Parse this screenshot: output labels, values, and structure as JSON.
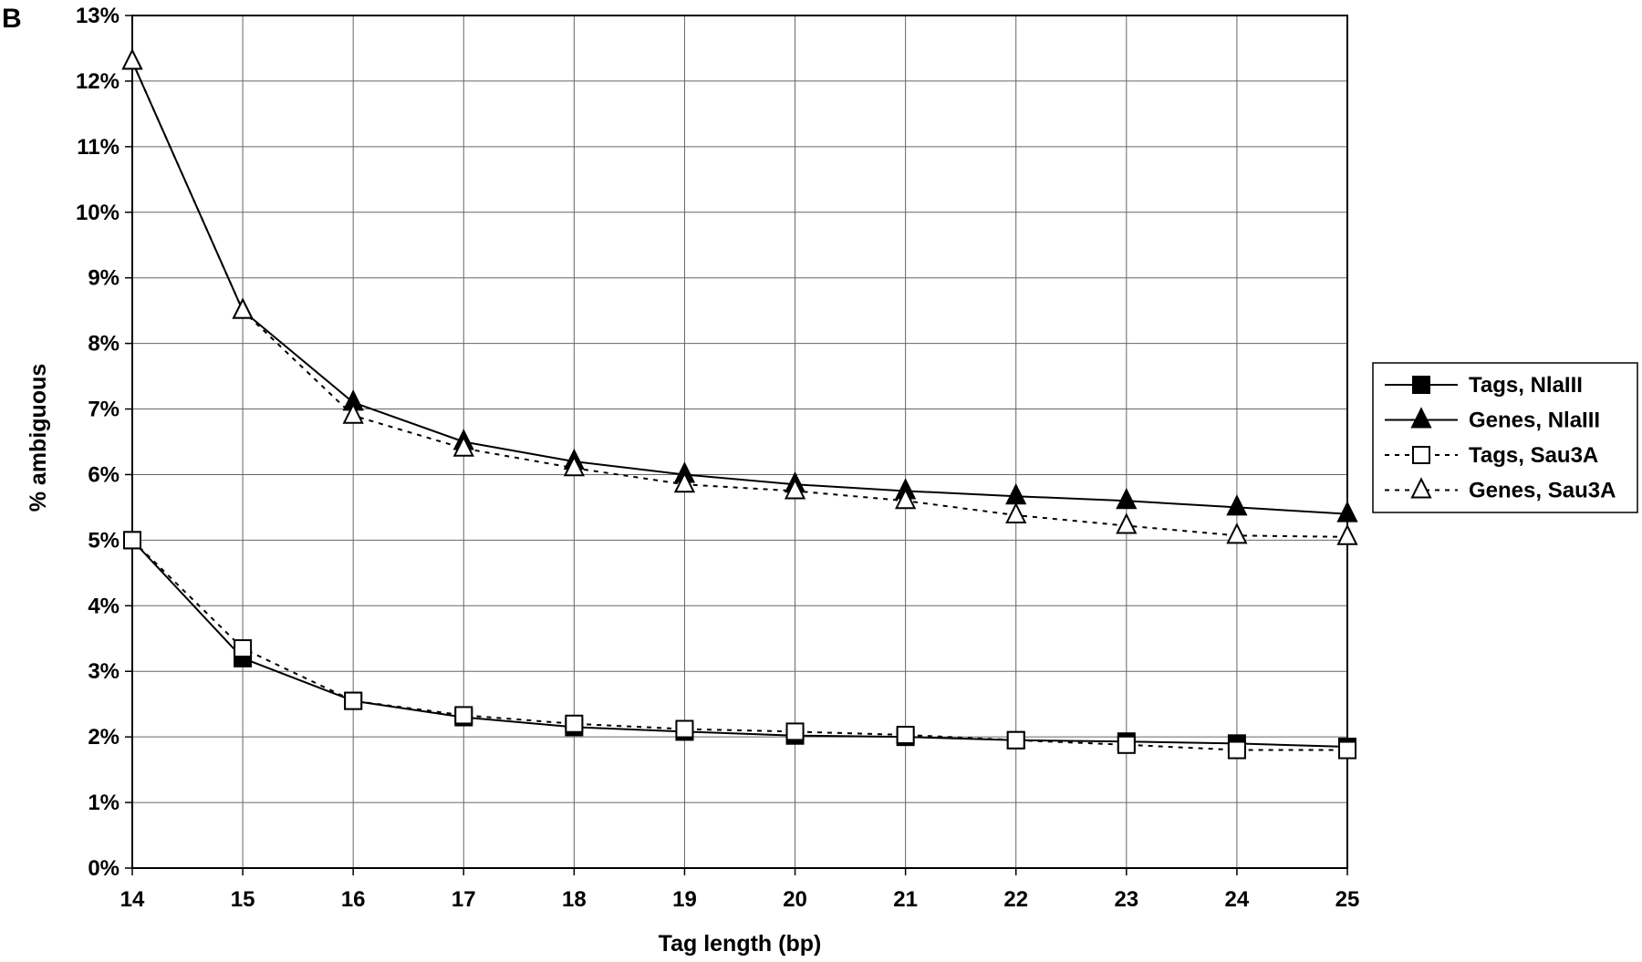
{
  "panel_label": "B",
  "chart_data": {
    "type": "line",
    "xlabel": "Tag length (bp)",
    "ylabel": "% ambiguous",
    "x": [
      14,
      15,
      16,
      17,
      18,
      19,
      20,
      21,
      22,
      23,
      24,
      25
    ],
    "x_tick_labels": [
      "14",
      "15",
      "16",
      "17",
      "18",
      "19",
      "20",
      "21",
      "22",
      "23",
      "24",
      "25"
    ],
    "xlim": [
      14,
      25
    ],
    "ylim": [
      0,
      13
    ],
    "y_ticks": [
      0,
      1,
      2,
      3,
      4,
      5,
      6,
      7,
      8,
      9,
      10,
      11,
      12,
      13
    ],
    "y_tick_labels": [
      "0%",
      "1%",
      "2%",
      "3%",
      "4%",
      "5%",
      "6%",
      "7%",
      "8%",
      "9%",
      "10%",
      "11%",
      "12%",
      "13%"
    ],
    "grid": true,
    "legend_position": "right",
    "series": [
      {
        "name": "Tags, NlaIII",
        "marker": "filled-square",
        "line": "solid",
        "color": "#000000",
        "values": [
          5.0,
          3.2,
          2.55,
          2.3,
          2.15,
          2.08,
          2.02,
          2.0,
          1.95,
          1.93,
          1.9,
          1.85
        ]
      },
      {
        "name": "Genes, NlaIII",
        "marker": "filled-triangle",
        "line": "solid",
        "color": "#000000",
        "values": [
          12.3,
          8.5,
          7.1,
          6.5,
          6.2,
          6.0,
          5.85,
          5.75,
          5.67,
          5.6,
          5.5,
          5.4
        ]
      },
      {
        "name": "Tags, Sau3A",
        "marker": "open-square",
        "line": "dotted",
        "color": "#000000",
        "values": [
          5.0,
          3.35,
          2.55,
          2.33,
          2.2,
          2.12,
          2.08,
          2.03,
          1.95,
          1.88,
          1.8,
          1.8
        ]
      },
      {
        "name": "Genes, Sau3A",
        "marker": "open-triangle",
        "line": "dotted",
        "color": "#000000",
        "values": [
          12.3,
          8.5,
          6.9,
          6.4,
          6.1,
          5.85,
          5.75,
          5.6,
          5.38,
          5.22,
          5.07,
          5.05
        ]
      }
    ]
  }
}
